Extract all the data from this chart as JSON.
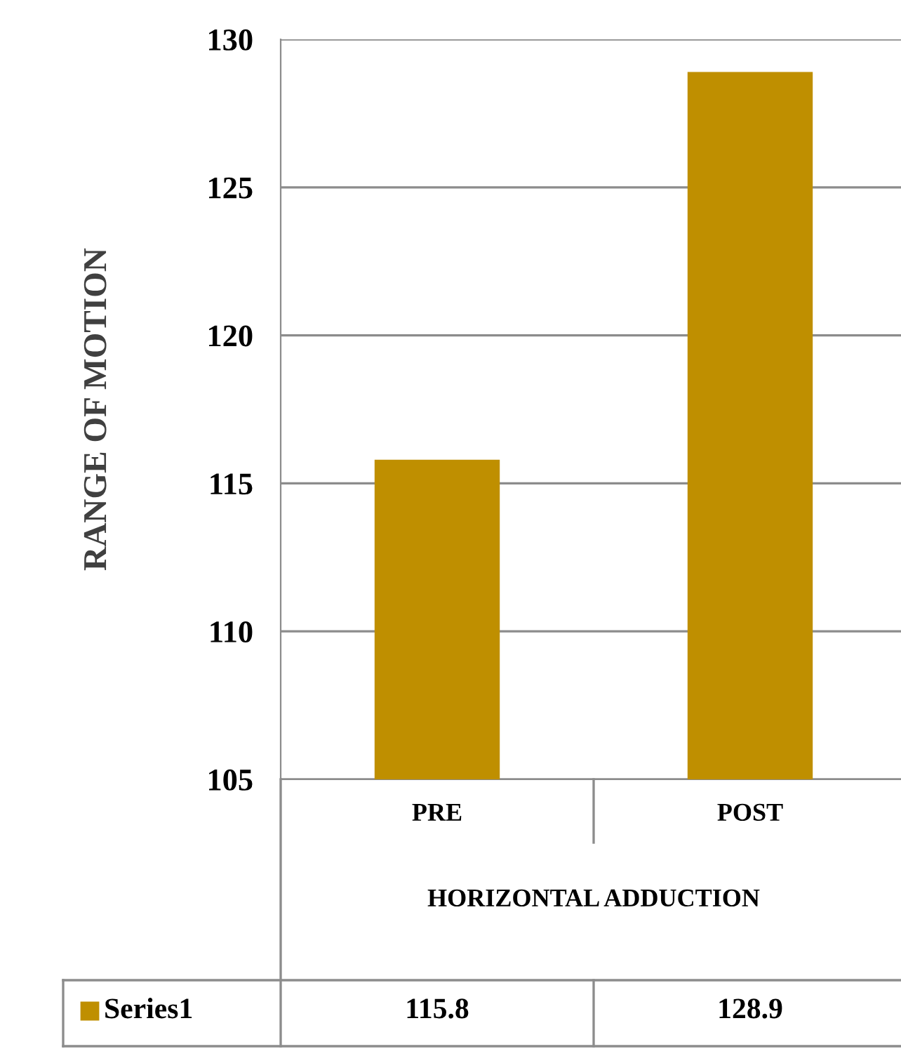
{
  "chart_data": {
    "type": "bar",
    "xlabel": "HORIZONTAL ADDUCTION",
    "ylabel": "RANGE OF MOTION",
    "categories": [
      "PRE",
      "POST"
    ],
    "series": [
      {
        "name": "Series1",
        "color": "#bf8f00",
        "values": [
          115.8,
          128.9
        ]
      }
    ],
    "ylim": [
      105,
      130
    ],
    "yticks": [
      105,
      110,
      115,
      120,
      125,
      130
    ],
    "grid": "y",
    "data_labels": true,
    "legend": "bottom"
  }
}
